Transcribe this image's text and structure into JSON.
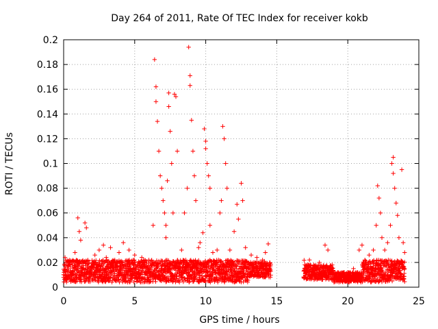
{
  "chart_data": {
    "type": "scatter",
    "title": "Day 264 of 2011, Rate Of TEC Index for receiver kokb",
    "xlabel": "GPS time / hours",
    "ylabel": "ROTI / TECUs",
    "xlim": [
      0,
      25
    ],
    "ylim": [
      0,
      0.2
    ],
    "xticks": [
      0,
      5,
      10,
      15,
      20,
      25
    ],
    "xtick_labels": [
      "0",
      "5",
      "10",
      "15",
      "20",
      "25"
    ],
    "yticks": [
      0,
      0.02,
      0.04,
      0.06,
      0.08,
      0.1,
      0.12,
      0.14,
      0.16,
      0.18,
      0.2
    ],
    "ytick_labels": [
      "0",
      "0.02",
      "0.04",
      "0.06",
      "0.08",
      "0.1",
      "0.12",
      "0.14",
      "0.16",
      "0.18",
      "0.2"
    ],
    "grid": true,
    "marker": "plus",
    "marker_color": "#ff0000",
    "data_gap_hours": [
      14.6,
      16.9
    ],
    "series": [
      {
        "name": "ROTI",
        "points": [
          [
            0.1,
            0.024
          ],
          [
            0.3,
            0.018
          ],
          [
            0.5,
            0.012
          ],
          [
            0.8,
            0.028
          ],
          [
            1.0,
            0.056
          ],
          [
            1.1,
            0.045
          ],
          [
            1.2,
            0.038
          ],
          [
            1.5,
            0.052
          ],
          [
            1.6,
            0.048
          ],
          [
            1.8,
            0.02
          ],
          [
            2.2,
            0.026
          ],
          [
            2.5,
            0.03
          ],
          [
            2.8,
            0.034
          ],
          [
            3.0,
            0.024
          ],
          [
            3.3,
            0.032
          ],
          [
            3.6,
            0.022
          ],
          [
            3.9,
            0.028
          ],
          [
            4.2,
            0.036
          ],
          [
            4.6,
            0.03
          ],
          [
            5.0,
            0.026
          ],
          [
            5.5,
            0.024
          ],
          [
            6.0,
            0.022
          ],
          [
            6.3,
            0.05
          ],
          [
            6.4,
            0.184
          ],
          [
            6.5,
            0.162
          ],
          [
            6.5,
            0.15
          ],
          [
            6.6,
            0.134
          ],
          [
            6.7,
            0.11
          ],
          [
            6.8,
            0.09
          ],
          [
            6.9,
            0.08
          ],
          [
            7.0,
            0.07
          ],
          [
            7.1,
            0.06
          ],
          [
            7.2,
            0.05
          ],
          [
            7.2,
            0.04
          ],
          [
            7.3,
            0.086
          ],
          [
            7.4,
            0.157
          ],
          [
            7.4,
            0.146
          ],
          [
            7.5,
            0.126
          ],
          [
            7.6,
            0.1
          ],
          [
            7.7,
            0.06
          ],
          [
            7.8,
            0.156
          ],
          [
            7.9,
            0.154
          ],
          [
            8.0,
            0.11
          ],
          [
            8.3,
            0.03
          ],
          [
            8.5,
            0.06
          ],
          [
            8.7,
            0.08
          ],
          [
            8.8,
            0.194
          ],
          [
            8.9,
            0.171
          ],
          [
            8.9,
            0.163
          ],
          [
            9.0,
            0.135
          ],
          [
            9.1,
            0.11
          ],
          [
            9.2,
            0.09
          ],
          [
            9.3,
            0.07
          ],
          [
            9.5,
            0.032
          ],
          [
            9.6,
            0.036
          ],
          [
            9.8,
            0.044
          ],
          [
            9.9,
            0.128
          ],
          [
            10.0,
            0.118
          ],
          [
            10.0,
            0.112
          ],
          [
            10.1,
            0.1
          ],
          [
            10.2,
            0.09
          ],
          [
            10.3,
            0.08
          ],
          [
            10.3,
            0.05
          ],
          [
            10.5,
            0.028
          ],
          [
            10.8,
            0.03
          ],
          [
            11.0,
            0.06
          ],
          [
            11.1,
            0.07
          ],
          [
            11.2,
            0.13
          ],
          [
            11.3,
            0.12
          ],
          [
            11.4,
            0.1
          ],
          [
            11.5,
            0.08
          ],
          [
            11.7,
            0.03
          ],
          [
            12.0,
            0.045
          ],
          [
            12.2,
            0.067
          ],
          [
            12.3,
            0.055
          ],
          [
            12.5,
            0.084
          ],
          [
            12.6,
            0.07
          ],
          [
            12.8,
            0.032
          ],
          [
            13.2,
            0.026
          ],
          [
            13.6,
            0.024
          ],
          [
            14.0,
            0.022
          ],
          [
            14.2,
            0.028
          ],
          [
            14.4,
            0.035
          ],
          [
            17.0,
            0.015
          ],
          [
            17.3,
            0.022
          ],
          [
            17.6,
            0.018
          ],
          [
            18.0,
            0.02
          ],
          [
            18.4,
            0.034
          ],
          [
            18.6,
            0.03
          ],
          [
            18.9,
            0.018
          ],
          [
            19.3,
            0.012
          ],
          [
            19.6,
            0.01
          ],
          [
            20.0,
            0.012
          ],
          [
            20.4,
            0.015
          ],
          [
            20.8,
            0.03
          ],
          [
            21.0,
            0.034
          ],
          [
            21.2,
            0.022
          ],
          [
            21.5,
            0.026
          ],
          [
            21.8,
            0.03
          ],
          [
            22.0,
            0.05
          ],
          [
            22.1,
            0.082
          ],
          [
            22.2,
            0.072
          ],
          [
            22.3,
            0.06
          ],
          [
            22.4,
            0.04
          ],
          [
            22.6,
            0.03
          ],
          [
            22.8,
            0.036
          ],
          [
            23.0,
            0.05
          ],
          [
            23.1,
            0.1
          ],
          [
            23.2,
            0.105
          ],
          [
            23.2,
            0.092
          ],
          [
            23.3,
            0.08
          ],
          [
            23.4,
            0.068
          ],
          [
            23.5,
            0.058
          ],
          [
            23.6,
            0.04
          ],
          [
            23.8,
            0.095
          ],
          [
            23.9,
            0.036
          ],
          [
            24.0,
            0.028
          ]
        ]
      }
    ]
  }
}
